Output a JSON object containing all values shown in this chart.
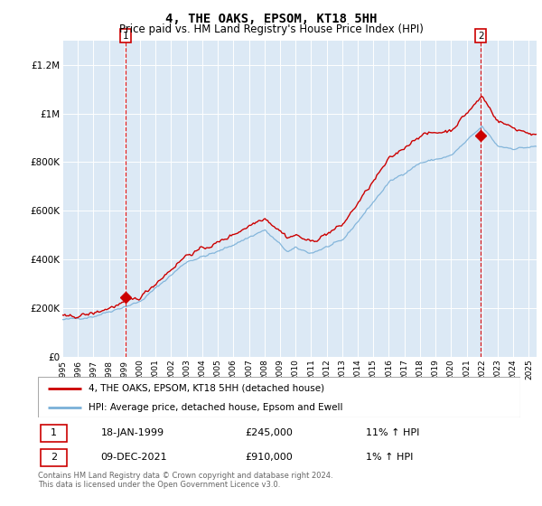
{
  "title": "4, THE OAKS, EPSOM, KT18 5HH",
  "subtitle": "Price paid vs. HM Land Registry's House Price Index (HPI)",
  "bg_color": "#dce9f5",
  "red_line_label": "4, THE OAKS, EPSOM, KT18 5HH (detached house)",
  "blue_line_label": "HPI: Average price, detached house, Epsom and Ewell",
  "annotation1_date": "18-JAN-1999",
  "annotation1_price": "£245,000",
  "annotation1_hpi": "11% ↑ HPI",
  "annotation2_date": "09-DEC-2021",
  "annotation2_price": "£910,000",
  "annotation2_hpi": "1% ↑ HPI",
  "footer": "Contains HM Land Registry data © Crown copyright and database right 2024.\nThis data is licensed under the Open Government Licence v3.0.",
  "xmin": 1995.0,
  "xmax": 2025.5,
  "ymin": 0,
  "ymax": 1300000,
  "yticks": [
    0,
    200000,
    400000,
    600000,
    800000,
    1000000,
    1200000
  ],
  "ytick_labels": [
    "£0",
    "£200K",
    "£400K",
    "£600K",
    "£800K",
    "£1M",
    "£1.2M"
  ],
  "xticks": [
    1995,
    1996,
    1997,
    1998,
    1999,
    2000,
    2001,
    2002,
    2003,
    2004,
    2005,
    2006,
    2007,
    2008,
    2009,
    2010,
    2011,
    2012,
    2013,
    2014,
    2015,
    2016,
    2017,
    2018,
    2019,
    2020,
    2021,
    2022,
    2023,
    2024,
    2025
  ],
  "marker1_x": 1999.05,
  "marker1_y": 245000,
  "marker2_x": 2021.92,
  "marker2_y": 910000,
  "vline1_x": 1999.05,
  "vline2_x": 2021.92,
  "red_color": "#cc0000",
  "blue_color": "#7ab0d8",
  "title_fontsize": 10,
  "subtitle_fontsize": 8.5
}
